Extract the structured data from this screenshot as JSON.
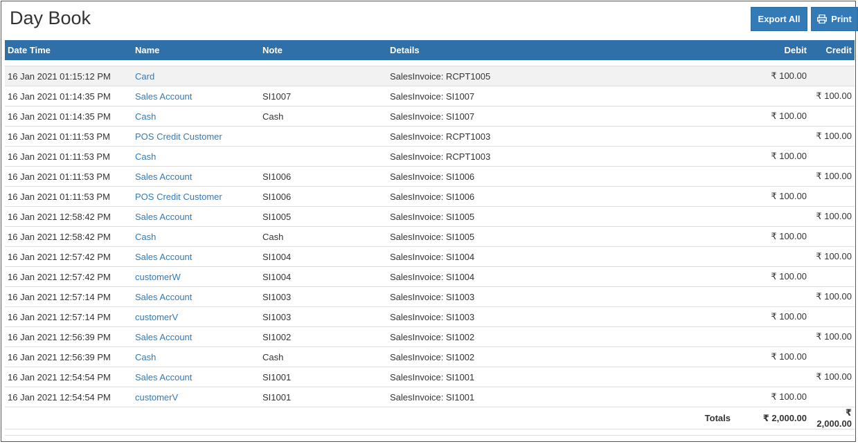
{
  "page": {
    "title": "Day Book"
  },
  "toolbar": {
    "export_label": "Export All",
    "print_label": "Print"
  },
  "columns": {
    "date_time": "Date Time",
    "name": "Name",
    "note": "Note",
    "details": "Details",
    "debit": "Debit",
    "credit": "Credit"
  },
  "rows": [
    {
      "date": "16 Jan 2021 01:15:12 PM",
      "name": "Card",
      "note": "",
      "details": "SalesInvoice: RCPT1005",
      "debit": "₹ 100.00",
      "credit": ""
    },
    {
      "date": "16 Jan 2021 01:14:35 PM",
      "name": "Sales Account",
      "note": "SI1007",
      "details": "SalesInvoice: SI1007",
      "debit": "",
      "credit": "₹ 100.00"
    },
    {
      "date": "16 Jan 2021 01:14:35 PM",
      "name": "Cash",
      "note": "Cash",
      "details": "SalesInvoice: SI1007",
      "debit": "₹ 100.00",
      "credit": ""
    },
    {
      "date": "16 Jan 2021 01:11:53 PM",
      "name": "POS Credit Customer",
      "note": "",
      "details": "SalesInvoice: RCPT1003",
      "debit": "",
      "credit": "₹ 100.00"
    },
    {
      "date": "16 Jan 2021 01:11:53 PM",
      "name": "Cash",
      "note": "",
      "details": "SalesInvoice: RCPT1003",
      "debit": "₹ 100.00",
      "credit": ""
    },
    {
      "date": "16 Jan 2021 01:11:53 PM",
      "name": "Sales Account",
      "note": "SI1006",
      "details": "SalesInvoice: SI1006",
      "debit": "",
      "credit": "₹ 100.00"
    },
    {
      "date": "16 Jan 2021 01:11:53 PM",
      "name": "POS Credit Customer",
      "note": "SI1006",
      "details": "SalesInvoice: SI1006",
      "debit": "₹ 100.00",
      "credit": ""
    },
    {
      "date": "16 Jan 2021 12:58:42 PM",
      "name": "Sales Account",
      "note": "SI1005",
      "details": "SalesInvoice: SI1005",
      "debit": "",
      "credit": "₹ 100.00"
    },
    {
      "date": "16 Jan 2021 12:58:42 PM",
      "name": "Cash",
      "note": "Cash",
      "details": "SalesInvoice: SI1005",
      "debit": "₹ 100.00",
      "credit": ""
    },
    {
      "date": "16 Jan 2021 12:57:42 PM",
      "name": "Sales Account",
      "note": "SI1004",
      "details": "SalesInvoice: SI1004",
      "debit": "",
      "credit": "₹ 100.00"
    },
    {
      "date": "16 Jan 2021 12:57:42 PM",
      "name": "customerW",
      "note": "SI1004",
      "details": "SalesInvoice: SI1004",
      "debit": "₹ 100.00",
      "credit": ""
    },
    {
      "date": "16 Jan 2021 12:57:14 PM",
      "name": "Sales Account",
      "note": "SI1003",
      "details": "SalesInvoice: SI1003",
      "debit": "",
      "credit": "₹ 100.00"
    },
    {
      "date": "16 Jan 2021 12:57:14 PM",
      "name": "customerV",
      "note": "SI1003",
      "details": "SalesInvoice: SI1003",
      "debit": "₹ 100.00",
      "credit": ""
    },
    {
      "date": "16 Jan 2021 12:56:39 PM",
      "name": "Sales Account",
      "note": "SI1002",
      "details": "SalesInvoice: SI1002",
      "debit": "",
      "credit": "₹ 100.00"
    },
    {
      "date": "16 Jan 2021 12:56:39 PM",
      "name": "Cash",
      "note": "Cash",
      "details": "SalesInvoice: SI1002",
      "debit": "₹ 100.00",
      "credit": ""
    },
    {
      "date": "16 Jan 2021 12:54:54 PM",
      "name": "Sales Account",
      "note": "SI1001",
      "details": "SalesInvoice: SI1001",
      "debit": "",
      "credit": "₹ 100.00"
    },
    {
      "date": "16 Jan 2021 12:54:54 PM",
      "name": "customerV",
      "note": "SI1001",
      "details": "SalesInvoice: SI1001",
      "debit": "₹ 100.00",
      "credit": ""
    }
  ],
  "totals": {
    "label": "Totals",
    "debit": "₹ 2,000.00",
    "credit": "₹ 2,000.00"
  },
  "colors": {
    "accent": "#337ab7",
    "header_bg": "#3070a8"
  }
}
